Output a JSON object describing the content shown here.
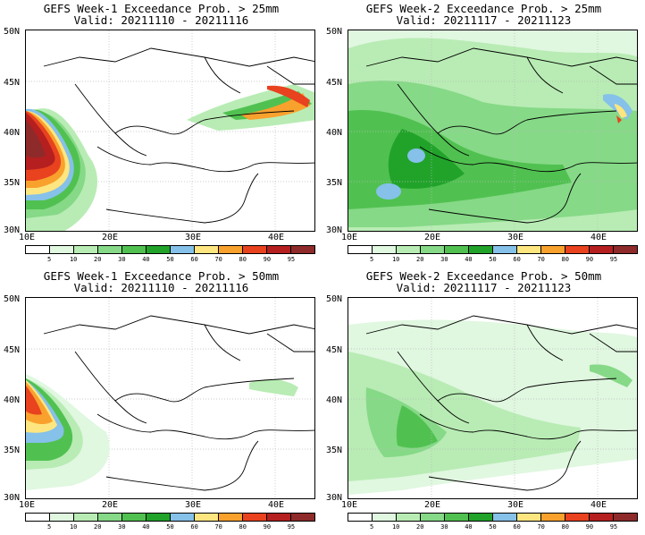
{
  "legend": {
    "labels": [
      "5",
      "10",
      "20",
      "30",
      "40",
      "50",
      "60",
      "70",
      "80",
      "90",
      "95"
    ],
    "colors": [
      "#ffffff",
      "#e0f7e0",
      "#b8ecb4",
      "#86d987",
      "#50c150",
      "#21a32a",
      "#85c1e9",
      "#fde680",
      "#f9a12d",
      "#e8421f",
      "#b51f1f",
      "#8e2a2a"
    ]
  },
  "lat_labels": [
    "50N",
    "45N",
    "40N",
    "35N",
    "30N"
  ],
  "lon_labels": [
    "10E",
    "20E",
    "30E",
    "40E"
  ],
  "panels": [
    {
      "title": "GEFS Week-1 Exceedance Prob. > 25mm",
      "valid": "Valid: 20211110 - 20211116"
    },
    {
      "title": "GEFS Week-2 Exceedance Prob. > 25mm",
      "valid": "Valid: 20211117 - 20211123"
    },
    {
      "title": "GEFS Week-1 Exceedance Prob. > 50mm",
      "valid": "Valid: 20211110 - 20211116"
    },
    {
      "title": "GEFS Week-2 Exceedance Prob. > 50mm",
      "valid": "Valid: 20211117 - 20211123"
    }
  ]
}
